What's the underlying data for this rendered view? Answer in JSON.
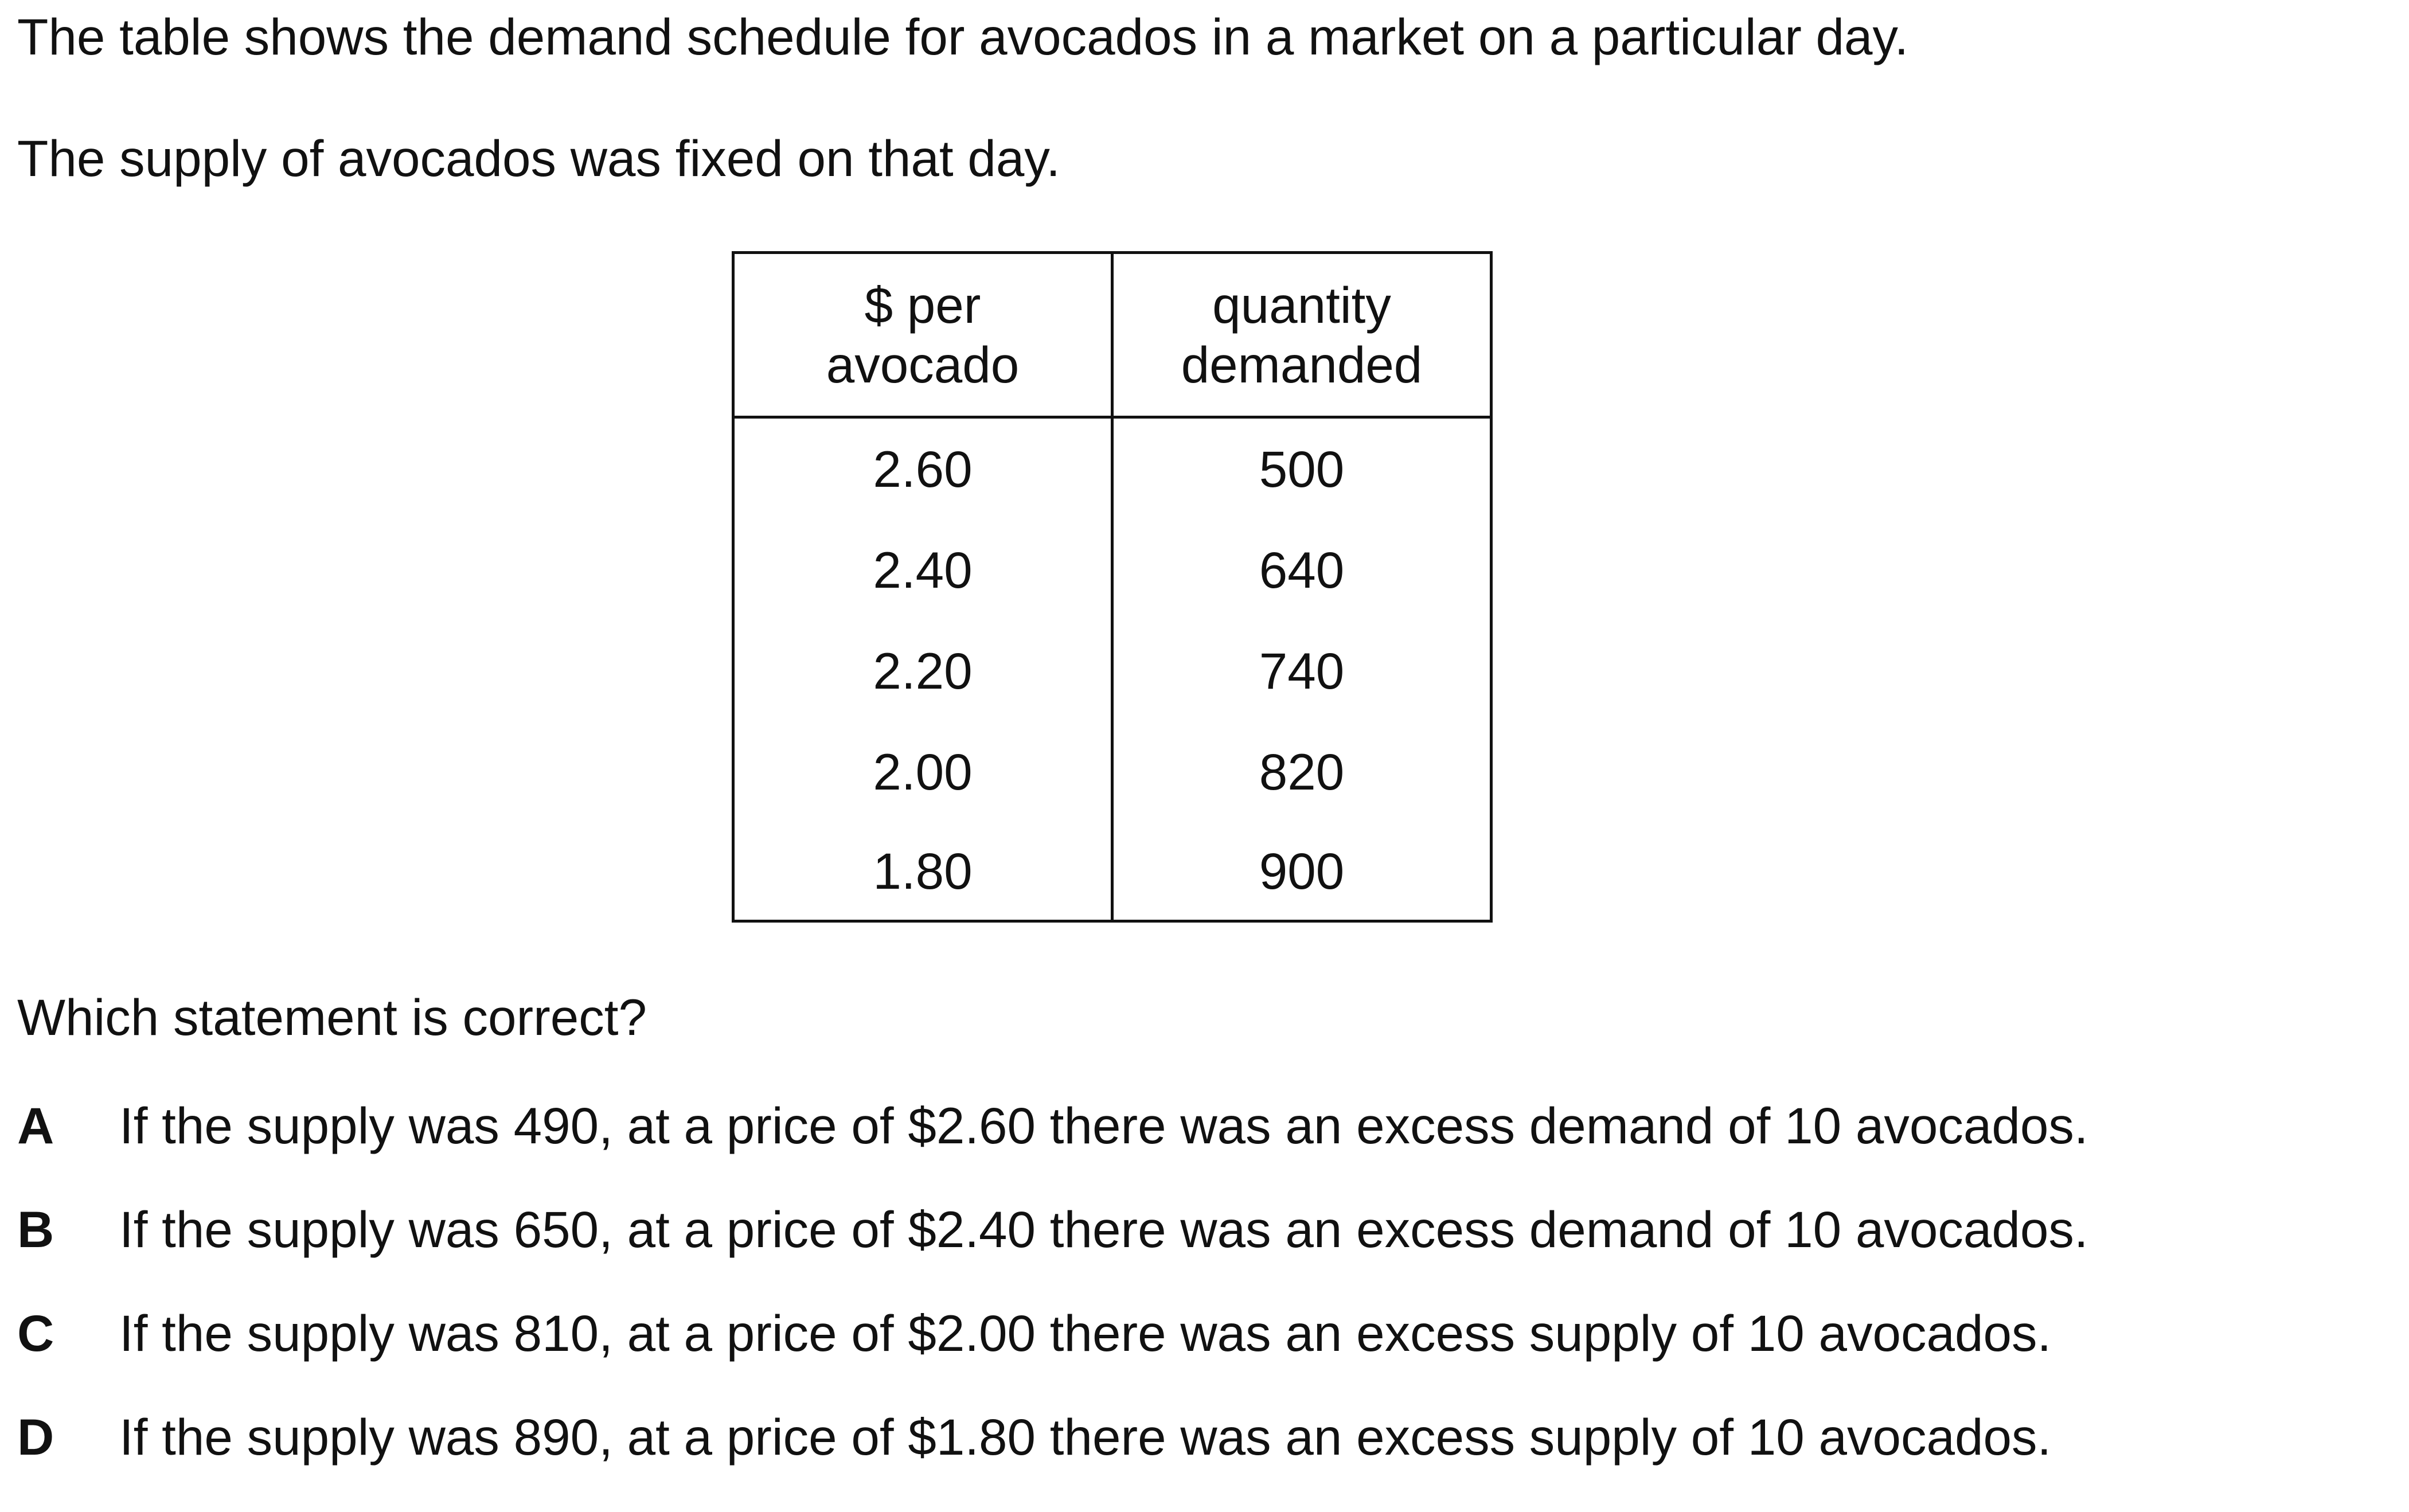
{
  "intro": {
    "line1": "The table shows the demand schedule for avocados in a market on a particular day.",
    "line2": "The supply of avocados was fixed on that day."
  },
  "table": {
    "headers": [
      [
        "$ per",
        "avocado"
      ],
      [
        "quantity",
        "demanded"
      ]
    ],
    "rows": [
      [
        "2.60",
        "500"
      ],
      [
        "2.40",
        "640"
      ],
      [
        "2.20",
        "740"
      ],
      [
        "2.00",
        "820"
      ],
      [
        "1.80",
        "900"
      ]
    ]
  },
  "question": "Which statement is correct?",
  "options": [
    {
      "letter": "A",
      "text": "If the supply was 490, at a price of $2.60 there was an excess demand of 10 avocados."
    },
    {
      "letter": "B",
      "text": "If the supply was 650, at a price of $2.40 there was an excess demand of 10 avocados."
    },
    {
      "letter": "C",
      "text": "If the supply was 810, at a price of $2.00 there was an excess supply of 10 avocados."
    },
    {
      "letter": "D",
      "text": "If the supply was 890, at a price of $1.80 there was an excess supply of 10 avocados."
    }
  ]
}
